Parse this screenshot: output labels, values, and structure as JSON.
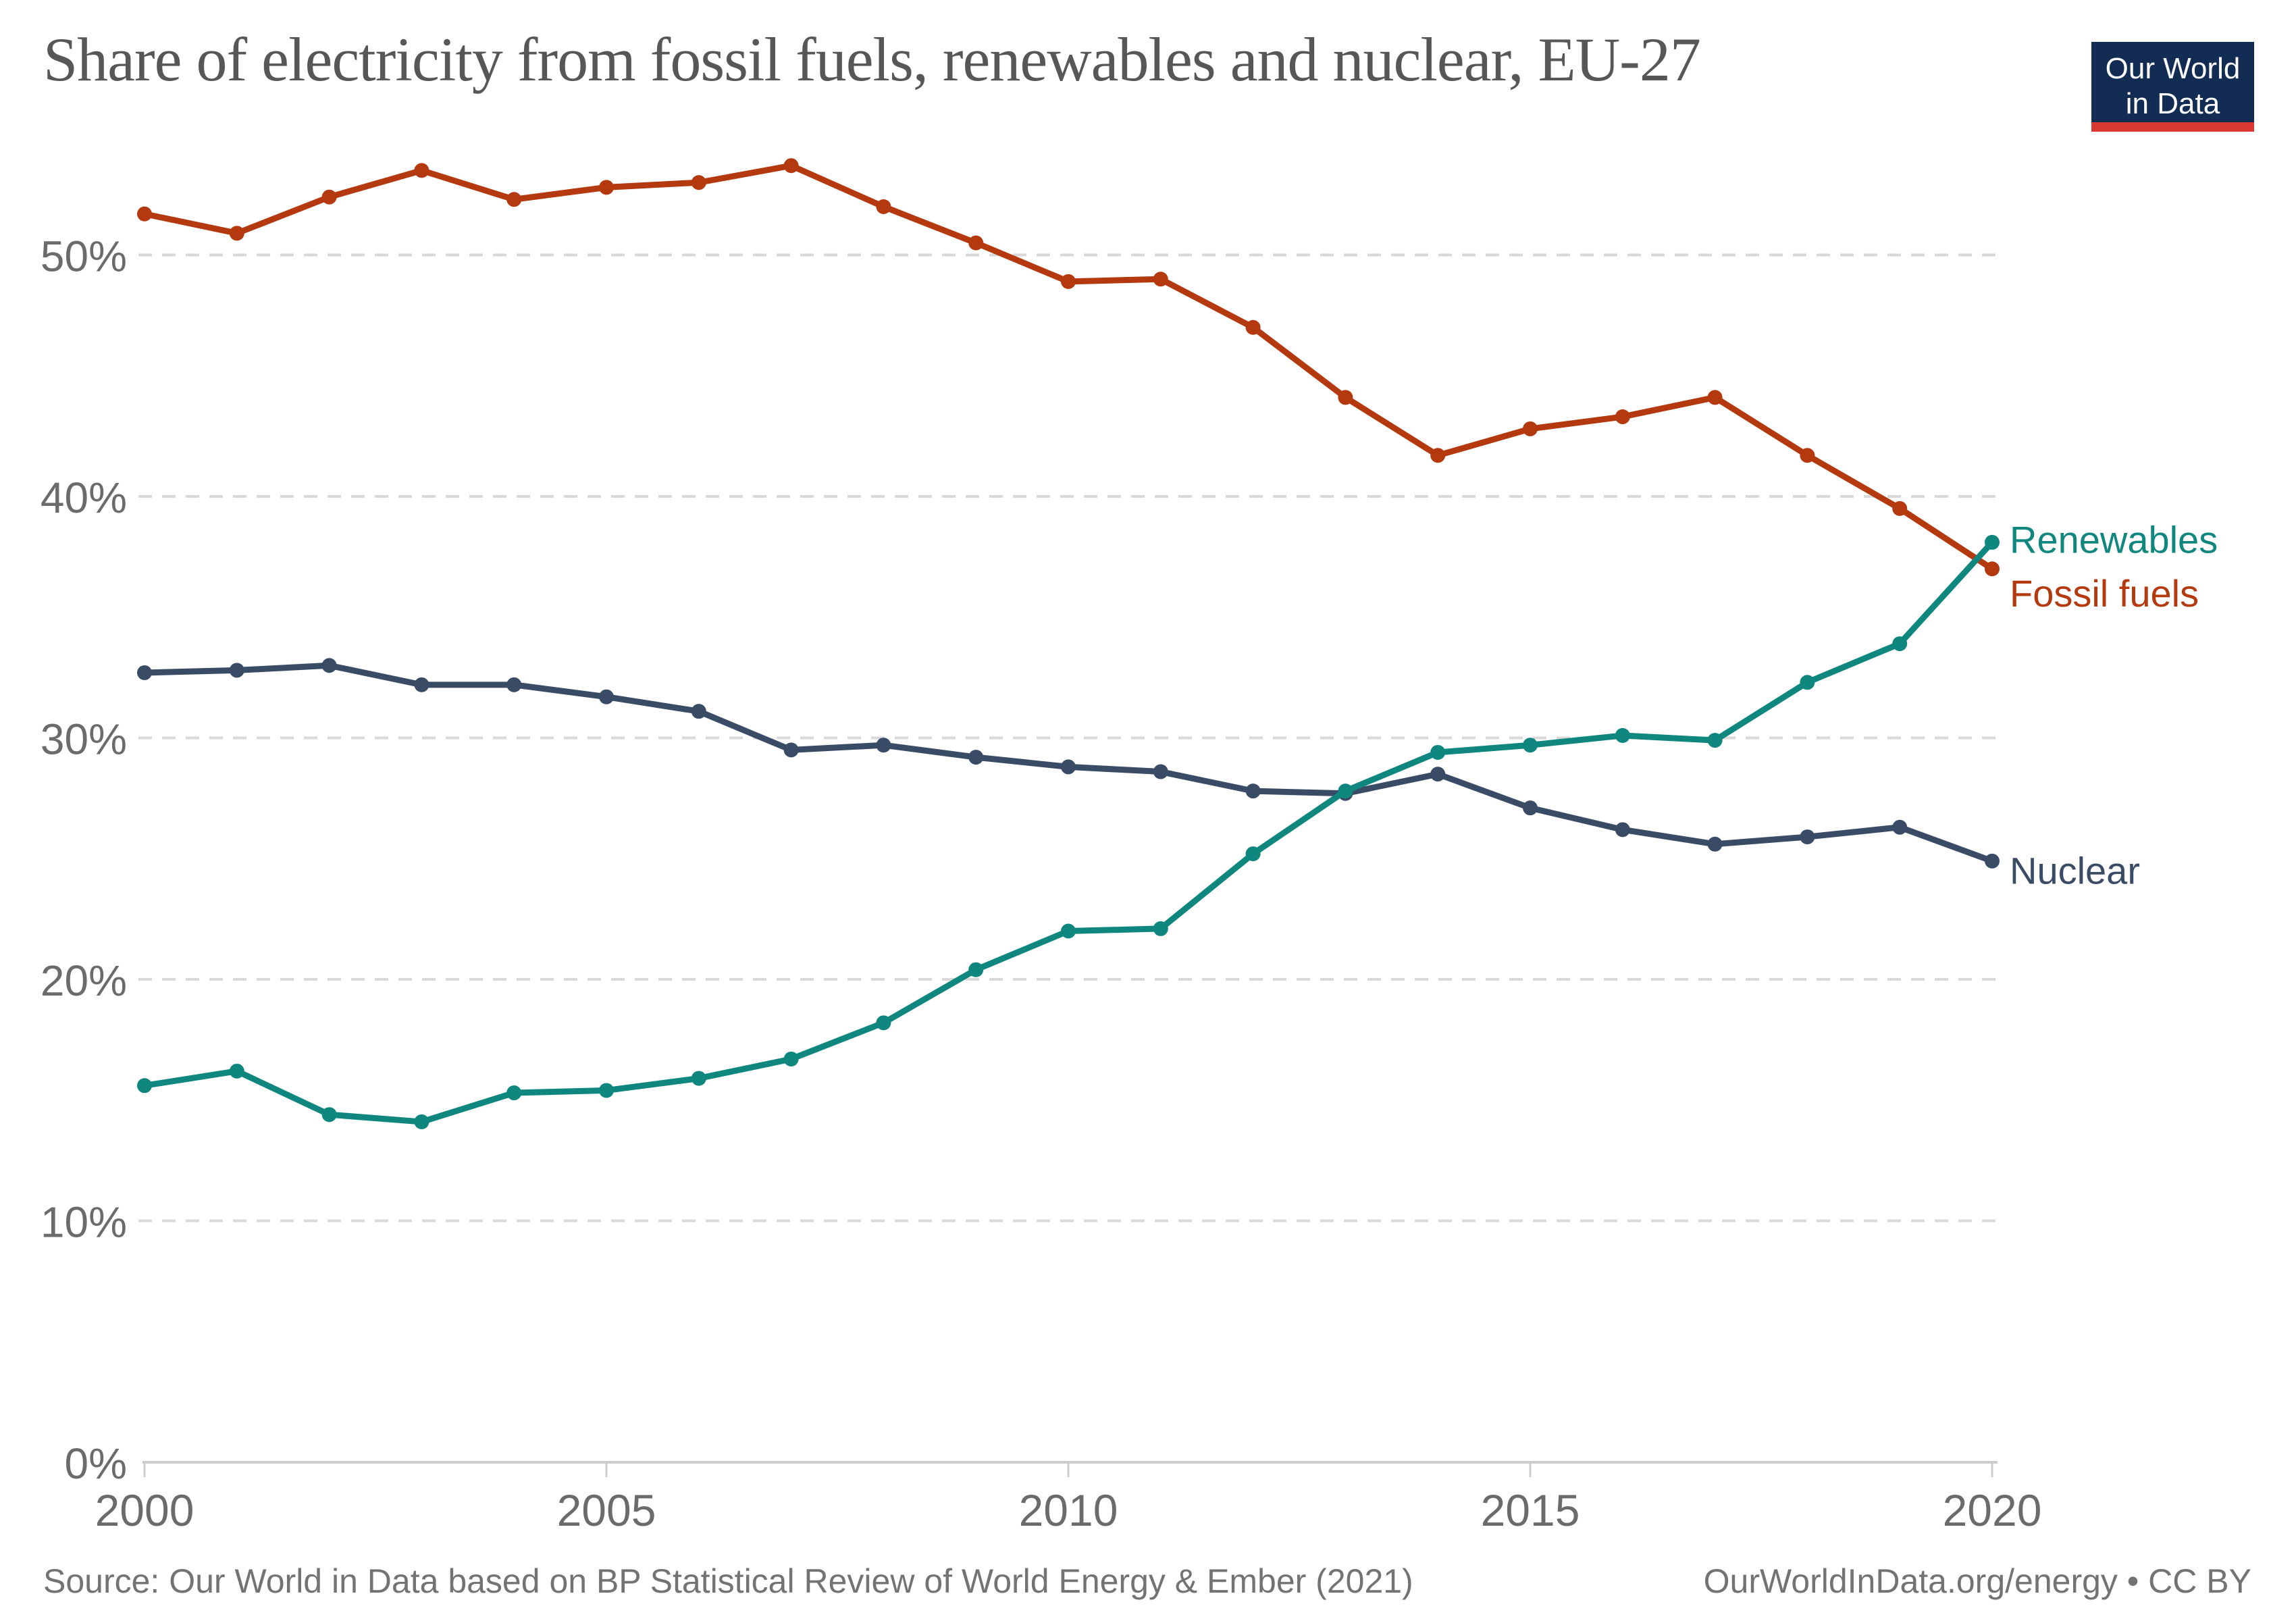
{
  "title": "Share of electricity from fossil fuels, renewables and nuclear, EU-27",
  "logo": {
    "line1": "Our World",
    "line2": "in Data",
    "bg_color": "#132c54",
    "accent_color": "#da3a32"
  },
  "footer": {
    "source": "Source: Our World in Data based on BP Statistical Review of World Energy & Ember (2021)",
    "credit": "OurWorldInData.org/energy • CC BY"
  },
  "colors": {
    "gridline": "#d9d9d9",
    "axis": "#cdcdcd",
    "tick_text": "#6b6b6b",
    "title_text": "#575757",
    "footer_text": "#737373"
  },
  "chart_data": {
    "type": "line",
    "title": "Share of electricity from fossil fuels, renewables and nuclear, EU-27",
    "xlabel": "",
    "ylabel": "",
    "x": [
      2000,
      2001,
      2002,
      2003,
      2004,
      2005,
      2006,
      2007,
      2008,
      2009,
      2010,
      2011,
      2012,
      2013,
      2014,
      2015,
      2016,
      2017,
      2018,
      2019,
      2020
    ],
    "series": [
      {
        "name": "Fossil fuels",
        "color": "#b4390f",
        "values": [
          51.7,
          50.9,
          52.4,
          53.5,
          52.3,
          52.8,
          53.0,
          53.7,
          52.0,
          50.5,
          48.9,
          49.0,
          47.0,
          44.1,
          41.7,
          42.8,
          43.3,
          44.1,
          41.7,
          39.5,
          37.0
        ]
      },
      {
        "name": "Nuclear",
        "color": "#3a4b66",
        "values": [
          32.7,
          32.8,
          33.0,
          32.2,
          32.2,
          31.7,
          31.1,
          29.5,
          29.7,
          29.2,
          28.8,
          28.6,
          27.8,
          27.7,
          28.5,
          27.1,
          26.2,
          25.6,
          25.9,
          26.3,
          24.9
        ]
      },
      {
        "name": "Renewables",
        "color": "#0f877e",
        "values": [
          15.6,
          16.2,
          14.4,
          14.1,
          15.3,
          15.4,
          15.9,
          16.7,
          18.2,
          20.4,
          22.0,
          22.1,
          25.2,
          27.8,
          29.4,
          29.7,
          30.1,
          29.9,
          32.3,
          33.9,
          38.1
        ]
      }
    ],
    "ylim": [
      0,
      55
    ],
    "yticks": [
      0,
      10,
      20,
      30,
      40,
      50
    ],
    "ytick_labels": [
      "0%",
      "10%",
      "20%",
      "30%",
      "40%",
      "50%"
    ],
    "xticks": [
      2000,
      2005,
      2010,
      2015,
      2020
    ],
    "grid": "horizontal-dashed",
    "legend_position": "line-end-labels-right"
  }
}
